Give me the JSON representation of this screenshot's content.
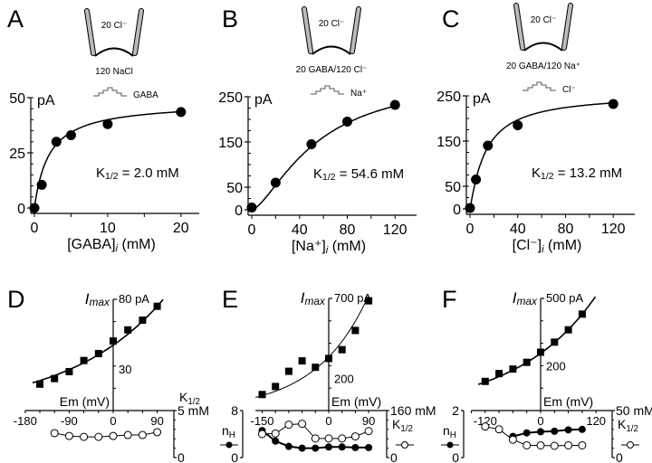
{
  "chart_data": [
    {
      "panel": "A",
      "type": "scatter",
      "diagram": {
        "pipette_label": "20 Cl⁻",
        "bath_label": "120 NaCl",
        "stimulus_label": "GABA"
      },
      "ylabel": "pA",
      "xlabel_pre": "[GABA]",
      "xlabel_sub": "i",
      "xlabel_post": " (mM)",
      "xlim": [
        0,
        22
      ],
      "ylim": [
        0,
        50
      ],
      "xticks": [
        0,
        10,
        20
      ],
      "yticks": [
        0,
        25,
        50
      ],
      "annotation_k": "K",
      "annotation_sub": "1/2",
      "annotation_val": " = 2.0 mM",
      "x": [
        0,
        1,
        3,
        5,
        10,
        20
      ],
      "y": [
        0,
        10.5,
        30,
        33,
        38,
        43.5
      ],
      "fit": {
        "model": "michaelis-menten",
        "vmax": 48,
        "k": 2.0,
        "n": 1
      }
    },
    {
      "panel": "B",
      "type": "scatter",
      "diagram": {
        "pipette_label": "20 Cl⁻",
        "bath_label": "20 GABA/120 Cl⁻",
        "stimulus_label": "Na⁺"
      },
      "ylabel": "pA",
      "xlabel_pre": "[Na⁺]",
      "xlabel_sub": "i",
      "xlabel_post": " (mM)",
      "xlim": [
        0,
        135
      ],
      "ylim": [
        0,
        250
      ],
      "xticks": [
        0,
        40,
        80,
        120
      ],
      "yticks": [
        0,
        50,
        150,
        250
      ],
      "annotation_k": "K",
      "annotation_sub": "1/2",
      "annotation_val": " = 54.6 mM",
      "x": [
        0,
        20,
        50,
        80,
        120
      ],
      "y": [
        5,
        60,
        145,
        195,
        232
      ],
      "fit": {
        "model": "hill",
        "vmax": 300,
        "k": 54.6,
        "n": 1.5
      }
    },
    {
      "panel": "C",
      "type": "scatter",
      "diagram": {
        "pipette_label": "20 Cl⁻",
        "bath_label": "20 GABA/120 Na⁺",
        "stimulus_label": "Cl⁻"
      },
      "ylabel": "pA",
      "xlabel_pre": "[Cl⁻]",
      "xlabel_sub": "i",
      "xlabel_post": " (mM)",
      "xlim": [
        0,
        135
      ],
      "ylim": [
        0,
        250
      ],
      "xticks": [
        0,
        40,
        80,
        120
      ],
      "yticks": [
        0,
        50,
        150,
        250
      ],
      "annotation_k": "K",
      "annotation_sub": "1/2",
      "annotation_val": " = 13.2 mM",
      "x": [
        0,
        5,
        15,
        40,
        120
      ],
      "y": [
        2,
        65,
        140,
        185,
        232
      ],
      "fit": {
        "model": "hill",
        "vmax": 255,
        "k": 13.2,
        "n": 1.1
      }
    },
    {
      "panel": "D",
      "type": "scatter",
      "imax_label": "max",
      "imax_unit_top": "80 pA",
      "imax_mid_tick": "30",
      "xlabel": "Em (mV)",
      "xticks": [
        -180,
        -90,
        0,
        90
      ],
      "xlim": [
        -180,
        105
      ],
      "imax_ylim": [
        0,
        80
      ],
      "imax": {
        "x": [
          -150,
          -120,
          -90,
          -60,
          -30,
          0,
          30,
          60,
          90
        ],
        "y": [
          19,
          23,
          28,
          36,
          41,
          50,
          58,
          65,
          75
        ]
      },
      "imax_fit": {
        "a": 47,
        "b": 0.0052
      },
      "right_axis": {
        "label_k": "K",
        "label_sub": "1/2",
        "top": "5 mM",
        "bottom": "0",
        "ylim": [
          0,
          5
        ]
      },
      "k_half": {
        "x": [
          -120,
          -90,
          -60,
          -30,
          0,
          30,
          60,
          90
        ],
        "y": [
          2.6,
          2.3,
          2.2,
          2.2,
          2.3,
          2.4,
          2.4,
          2.7
        ]
      }
    },
    {
      "panel": "E",
      "type": "scatter",
      "imax_label": "max",
      "imax_unit_top": "700 pA",
      "imax_mid_tick": "200",
      "xlabel": "Em (mV)",
      "xticks": [
        -150,
        0,
        90
      ],
      "xlim": [
        -165,
        105
      ],
      "imax_ylim": [
        0,
        700
      ],
      "imax": {
        "x": [
          -150,
          -120,
          -90,
          -60,
          -30,
          0,
          30,
          60,
          90
        ],
        "y": [
          100,
          150,
          245,
          310,
          270,
          325,
          380,
          500,
          685
        ]
      },
      "imax_fit": {
        "a": 335,
        "b": 0.0085
      },
      "left_axis": {
        "label": "n",
        "label_sub": "H",
        "top": "8",
        "bottom": "0",
        "ylim": [
          0,
          8
        ]
      },
      "right_axis": {
        "label_k": "K",
        "label_sub": "1/2",
        "top": "160 mM",
        "bottom": "0",
        "ylim": [
          0,
          160
        ]
      },
      "n_hill": {
        "x": [
          -150,
          -120,
          -90,
          -60,
          -30,
          0,
          30,
          60,
          90
        ],
        "y": [
          4.6,
          2.8,
          1.9,
          1.6,
          1.6,
          1.8,
          1.8,
          1.7,
          1.7
        ]
      },
      "k_half": {
        "x": [
          -150,
          -120,
          -90,
          -60,
          -30,
          0,
          30,
          60,
          90
        ],
        "y": [
          80,
          82,
          112,
          115,
          65,
          65,
          65,
          72,
          90
        ]
      }
    },
    {
      "panel": "F",
      "type": "scatter",
      "imax_label": "max",
      "imax_unit_top": "500 pA",
      "imax_mid_tick": "200",
      "xlabel": "Em (mV)",
      "xticks": [
        -120,
        0,
        120
      ],
      "xlim": [
        -150,
        135
      ],
      "imax_ylim": [
        0,
        500
      ],
      "imax": {
        "x": [
          -120,
          -90,
          -60,
          -30,
          0,
          30,
          60,
          90
        ],
        "y": [
          130,
          165,
          185,
          215,
          260,
          305,
          360,
          430
        ]
      },
      "imax_fit": {
        "a": 255,
        "b": 0.0058
      },
      "left_axis": {
        "label": "n",
        "label_sub": "H",
        "top": "2",
        "bottom": "0",
        "ylim": [
          0,
          2
        ]
      },
      "right_axis": {
        "label_k": "K",
        "label_sub": "1/2",
        "top": "50 mM",
        "bottom": "0",
        "ylim": [
          0,
          50
        ]
      },
      "n_hill": {
        "x": [
          -60,
          -30,
          0,
          30,
          60,
          90
        ],
        "y": [
          0.9,
          1.05,
          1.1,
          1.12,
          1.18,
          1.2
        ]
      },
      "k_half": {
        "x": [
          -120,
          -90,
          -60,
          -30,
          0,
          30,
          60,
          90
        ],
        "y": [
          33,
          30,
          19,
          13,
          13,
          12.5,
          13,
          13
        ]
      }
    }
  ]
}
